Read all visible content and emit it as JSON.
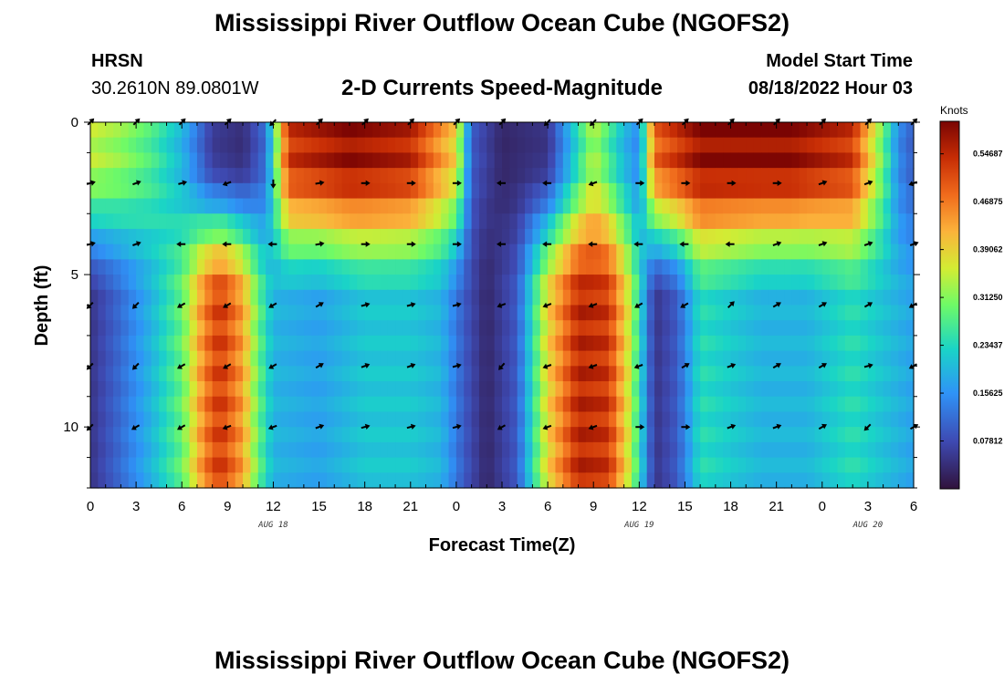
{
  "page": {
    "title": "Mississippi River Outflow Ocean Cube (NGOFS2)",
    "title_repeat": "Mississippi River Outflow Ocean Cube (NGOFS2)",
    "station_name": "HRSN",
    "coordinates": "30.2610N  89.0801W",
    "subtitle": "2-D Currents Speed-Magnitude",
    "model_start_label": "Model Start Time",
    "model_start_value": "08/18/2022 Hour 03"
  },
  "chart_data": {
    "type": "heatmap",
    "title": "2-D Currents Speed-Magnitude",
    "xlabel": "Forecast Time(Z)",
    "ylabel": "Depth (ft)",
    "x_range_hours": [
      0,
      54
    ],
    "y_range_ft": [
      0,
      12
    ],
    "x_ticks": [
      {
        "h": 0,
        "label": "0"
      },
      {
        "h": 3,
        "label": "3"
      },
      {
        "h": 6,
        "label": "6"
      },
      {
        "h": 9,
        "label": "9"
      },
      {
        "h": 12,
        "label": "12"
      },
      {
        "h": 15,
        "label": "15"
      },
      {
        "h": 18,
        "label": "18"
      },
      {
        "h": 21,
        "label": "21"
      },
      {
        "h": 24,
        "label": "0"
      },
      {
        "h": 27,
        "label": "3"
      },
      {
        "h": 30,
        "label": "6"
      },
      {
        "h": 33,
        "label": "9"
      },
      {
        "h": 36,
        "label": "12"
      },
      {
        "h": 39,
        "label": "15"
      },
      {
        "h": 42,
        "label": "18"
      },
      {
        "h": 45,
        "label": "21"
      },
      {
        "h": 48,
        "label": "0"
      },
      {
        "h": 51,
        "label": "3"
      },
      {
        "h": 54,
        "label": "6"
      }
    ],
    "date_labels": [
      {
        "h": 12,
        "label": "AUG 18"
      },
      {
        "h": 36,
        "label": "AUG 19"
      },
      {
        "h": 51,
        "label": "AUG 20"
      }
    ],
    "y_ticks": [
      {
        "v": 0,
        "label": "0"
      },
      {
        "v": 5,
        "label": "5"
      },
      {
        "v": 10,
        "label": "10"
      }
    ],
    "colorbar": {
      "unit": "Knots",
      "range": [
        0.0,
        0.6
      ],
      "ticks": [
        {
          "v": 0.078125,
          "label": "0.07812"
        },
        {
          "v": 0.15625,
          "label": "0.15625"
        },
        {
          "v": 0.234375,
          "label": "0.23437"
        },
        {
          "v": 0.3125,
          "label": "0.31250"
        },
        {
          "v": 0.390625,
          "label": "0.39062"
        },
        {
          "v": 0.46875,
          "label": "0.46875"
        },
        {
          "v": 0.546875,
          "label": "0.54687"
        }
      ]
    },
    "row_depths_ft": [
      0.25,
      0.75,
      1.25,
      1.75,
      2.25,
      2.75,
      3.25,
      3.75,
      4.25,
      4.75,
      5.25,
      5.75,
      6.25,
      6.75,
      7.25,
      7.75,
      8.25,
      8.75,
      9.25,
      9.75,
      10.25,
      10.75,
      11.25,
      11.75
    ],
    "speed_model": {
      "note": "Estimated speed (knots) profiles per forecast hour; estimated from colours",
      "surface_profile": [
        [
          0,
          0.36
        ],
        [
          2,
          0.33
        ],
        [
          4,
          0.28
        ],
        [
          6,
          0.2
        ],
        [
          8,
          0.06
        ],
        [
          10,
          0.04
        ],
        [
          11.5,
          0.12
        ],
        [
          13,
          0.55
        ],
        [
          17,
          0.6
        ],
        [
          21,
          0.57
        ],
        [
          24,
          0.4
        ],
        [
          25,
          0.1
        ],
        [
          27,
          0.03
        ],
        [
          30,
          0.05
        ],
        [
          32,
          0.25
        ],
        [
          33,
          0.35
        ],
        [
          35,
          0.2
        ],
        [
          36,
          0.15
        ],
        [
          37,
          0.5
        ],
        [
          40,
          0.6
        ],
        [
          46,
          0.6
        ],
        [
          50,
          0.55
        ],
        [
          52,
          0.3
        ],
        [
          53,
          0.15
        ],
        [
          54,
          0.1
        ]
      ],
      "surface_depth_ft": 6.0,
      "deep_profile": [
        [
          0,
          0.05
        ],
        [
          2,
          0.12
        ],
        [
          4,
          0.2
        ],
        [
          6,
          0.3
        ],
        [
          7.5,
          0.48
        ],
        [
          8.5,
          0.55
        ],
        [
          10,
          0.45
        ],
        [
          11,
          0.3
        ],
        [
          12,
          0.2
        ],
        [
          15,
          0.18
        ],
        [
          18,
          0.22
        ],
        [
          21,
          0.22
        ],
        [
          23,
          0.2
        ],
        [
          24.5,
          0.1
        ],
        [
          26,
          0.03
        ],
        [
          28,
          0.1
        ],
        [
          30,
          0.4
        ],
        [
          32,
          0.57
        ],
        [
          34,
          0.55
        ],
        [
          35.5,
          0.35
        ],
        [
          37,
          0.05
        ],
        [
          38.5,
          0.1
        ],
        [
          40,
          0.25
        ],
        [
          44,
          0.2
        ],
        [
          47,
          0.2
        ],
        [
          50,
          0.25
        ],
        [
          54,
          0.18
        ]
      ]
    },
    "vector_rows_ft": [
      0,
      2,
      4,
      6,
      8,
      10
    ],
    "vector_hours": [
      0,
      3,
      6,
      9,
      12,
      15,
      18,
      21,
      24,
      27,
      30,
      33,
      36,
      39,
      42,
      45,
      48,
      51,
      54
    ],
    "vector_directions_deg": [
      [
        45,
        45,
        45,
        45,
        225,
        45,
        45,
        45,
        45,
        45,
        225,
        225,
        45,
        45,
        45,
        45,
        45,
        45,
        45
      ],
      [
        15,
        20,
        15,
        200,
        270,
        10,
        0,
        0,
        0,
        180,
        180,
        200,
        0,
        0,
        0,
        0,
        20,
        20,
        200
      ],
      [
        15,
        20,
        180,
        180,
        180,
        10,
        0,
        0,
        0,
        180,
        180,
        180,
        180,
        180,
        180,
        20,
        20,
        20,
        20
      ],
      [
        225,
        225,
        210,
        210,
        210,
        30,
        15,
        15,
        15,
        200,
        200,
        200,
        210,
        210,
        45,
        30,
        30,
        30,
        210
      ],
      [
        225,
        225,
        210,
        210,
        210,
        30,
        20,
        20,
        15,
        230,
        200,
        200,
        200,
        30,
        20,
        30,
        30,
        15,
        210
      ],
      [
        225,
        210,
        210,
        200,
        200,
        20,
        15,
        15,
        15,
        210,
        200,
        200,
        0,
        0,
        20,
        20,
        30,
        225,
        30
      ]
    ]
  }
}
